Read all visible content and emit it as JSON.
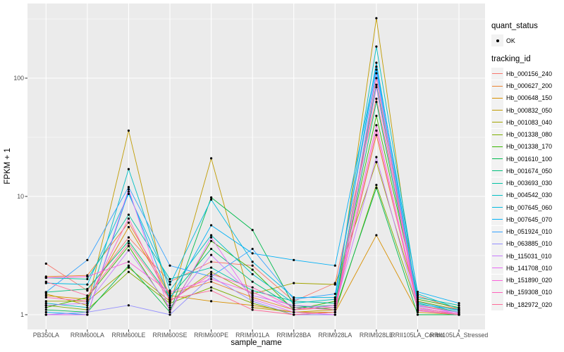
{
  "chart_data": {
    "type": "line",
    "title": "",
    "xlabel": "sample_name",
    "ylabel": "FPKM + 1",
    "y_scale": "log10",
    "y_tick_labels": [
      "1",
      "10",
      "100"
    ],
    "y_tick_values": [
      1,
      10,
      100
    ],
    "y_minor_values": [
      3.1623,
      31.623,
      316.23
    ],
    "ylim": [
      1,
      420
    ],
    "grid": "on",
    "panel_bg": "#EBEBEB",
    "grid_color": "#FFFFFF",
    "point_color": "#000000",
    "legend_position": "right",
    "categories": [
      "PB350LA",
      "RRIM600LA",
      "RRIM600LE",
      "RRIM600SE",
      "RRIM600PE",
      "RRIM901LA",
      "RRIM928BA",
      "RRIM928LA",
      "RRIM928LE",
      "RRII105LA_Control",
      "RRII105LA_Stressed"
    ],
    "series": [
      {
        "name": "Hb_000156_240",
        "color": "#F8766D",
        "values": [
          2.7,
          1.6,
          4.5,
          1.9,
          2.8,
          2.6,
          1.3,
          1.85,
          67,
          1.45,
          1.1
        ]
      },
      {
        "name": "Hb_000627_200",
        "color": "#EA8331",
        "values": [
          2.1,
          2.15,
          6.0,
          1.5,
          1.9,
          1.4,
          1.1,
          1.15,
          33,
          1.2,
          1.05
        ]
      },
      {
        "name": "Hb_000648_150",
        "color": "#D89000",
        "values": [
          1.45,
          1.35,
          5.5,
          1.45,
          1.3,
          1.2,
          1.05,
          1.05,
          4.7,
          1.05,
          1.0
        ]
      },
      {
        "name": "Hb_000832_050",
        "color": "#C09B00",
        "values": [
          1.5,
          1.2,
          36,
          1.2,
          21,
          1.15,
          1.05,
          1.1,
          321,
          1.1,
          1.0
        ]
      },
      {
        "name": "Hb_001083_040",
        "color": "#A3A500",
        "values": [
          1.3,
          1.3,
          2.5,
          1.3,
          2.3,
          1.5,
          1.85,
          1.8,
          19.5,
          1.3,
          1.1
        ]
      },
      {
        "name": "Hb_001338_080",
        "color": "#7CAE00",
        "values": [
          1.2,
          1.1,
          2.3,
          1.25,
          1.7,
          1.25,
          1.0,
          1.05,
          12.5,
          1.15,
          1.0
        ]
      },
      {
        "name": "Hb_001338_170",
        "color": "#39B600",
        "values": [
          1.15,
          1.4,
          3.8,
          1.1,
          4.2,
          2.4,
          1.1,
          1.3,
          48,
          1.35,
          1.15
        ]
      },
      {
        "name": "Hb_001610_100",
        "color": "#00BB4E",
        "values": [
          1.1,
          1.05,
          2.6,
          1.05,
          9.8,
          5.2,
          1.2,
          1.1,
          11.8,
          1.0,
          1.0
        ]
      },
      {
        "name": "Hb_001674_050",
        "color": "#00BF7D",
        "values": [
          1.55,
          1.65,
          4.2,
          1.4,
          3.6,
          1.9,
          1.15,
          1.2,
          63,
          1.25,
          1.05
        ]
      },
      {
        "name": "Hb_003693_030",
        "color": "#00C1A3",
        "values": [
          2.05,
          2.0,
          7.0,
          2.0,
          2.5,
          1.6,
          1.3,
          1.25,
          88,
          1.4,
          1.2
        ]
      },
      {
        "name": "Hb_004542_030",
        "color": "#00BFC4",
        "values": [
          1.25,
          1.15,
          17,
          1.6,
          4.7,
          2.2,
          1.25,
          1.35,
          185,
          1.5,
          1.12
        ]
      },
      {
        "name": "Hb_007645_060",
        "color": "#00BAE0",
        "values": [
          1.85,
          1.8,
          10.5,
          1.8,
          9.4,
          2.8,
          1.4,
          1.4,
          135,
          1.28,
          1.08
        ]
      },
      {
        "name": "Hb_007645_070",
        "color": "#00B0F6",
        "values": [
          1.05,
          1.0,
          11,
          1.35,
          5.7,
          3.3,
          2.9,
          2.6,
          125,
          1.56,
          1.25
        ]
      },
      {
        "name": "Hb_051924_010",
        "color": "#35A2FF",
        "values": [
          1.55,
          2.9,
          12,
          2.6,
          2.1,
          3.6,
          1.35,
          1.5,
          118,
          1.22,
          1.1
        ]
      },
      {
        "name": "Hb_063885_010",
        "color": "#9590FF",
        "values": [
          1.0,
          1.05,
          1.2,
          1.0,
          2.1,
          1.3,
          1.0,
          1.0,
          110,
          1.18,
          1.05
        ]
      },
      {
        "name": "Hb_115031_010",
        "color": "#C77CFF",
        "values": [
          1.2,
          1.25,
          3.5,
          1.15,
          3.2,
          1.45,
          1.2,
          1.15,
          21.5,
          1.12,
          1.03
        ]
      },
      {
        "name": "Hb_141708_010",
        "color": "#E76BF3",
        "values": [
          1.0,
          1.0,
          11.5,
          1.05,
          4.5,
          1.35,
          1.05,
          1.0,
          84,
          1.08,
          1.0
        ]
      },
      {
        "name": "Hb_151890_020",
        "color": "#FA62DB",
        "values": [
          2.05,
          2.1,
          2.8,
          1.55,
          2.0,
          1.55,
          1.1,
          1.2,
          40,
          1.2,
          1.02
        ]
      },
      {
        "name": "Hb_159308_010",
        "color": "#FF62BC",
        "values": [
          1.4,
          1.3,
          6.5,
          1.3,
          2.2,
          1.7,
          1.15,
          1.1,
          36,
          1.15,
          1.0
        ]
      },
      {
        "name": "Hb_182972_020",
        "color": "#FF6A98",
        "values": [
          1.9,
          1.45,
          4.0,
          1.35,
          1.6,
          1.1,
          1.0,
          1.05,
          100,
          1.1,
          1.0
        ]
      }
    ]
  },
  "legend": {
    "quant_status": {
      "title": "quant_status",
      "items": [
        {
          "label": "OK",
          "marker": "black-point"
        }
      ]
    },
    "tracking_id": {
      "title": "tracking_id"
    }
  }
}
